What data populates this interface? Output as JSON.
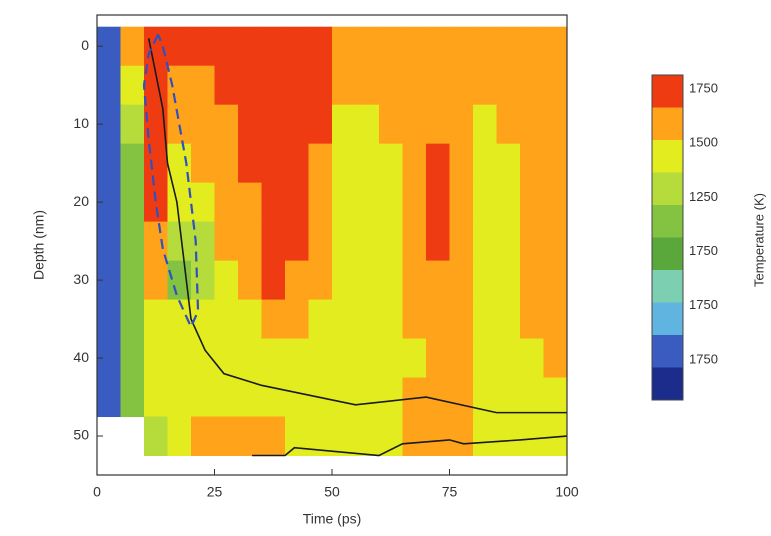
{
  "chart_data": {
    "type": "heatmap",
    "xlabel": "Time (ps)",
    "ylabel": "Depth (nm)",
    "colorbar_title": "Temperature (K)",
    "xlim": [
      0,
      100
    ],
    "ylim": [
      -4,
      55
    ],
    "y_inverted": true,
    "xticks": [
      0,
      25,
      50,
      75,
      100
    ],
    "yticks": [
      0,
      10,
      20,
      30,
      40,
      50
    ],
    "cell_width": 5,
    "cell_height": 5,
    "x": [
      2.5,
      7.5,
      12.5,
      17.5,
      22.5,
      27.5,
      32.5,
      37.5,
      42.5,
      47.5,
      52.5,
      57.5,
      62.5,
      67.5,
      72.5,
      77.5,
      82.5,
      87.5,
      92.5,
      97.5
    ],
    "y": [
      0,
      5,
      10,
      15,
      20,
      25,
      30,
      35,
      40,
      45,
      50
    ],
    "z": [
      [
        750,
        1500,
        1700,
        1700,
        1700,
        1700,
        1700,
        1700,
        1700,
        1700,
        1500,
        1500,
        1500,
        1500,
        1500,
        1500,
        1500,
        1500,
        1500,
        1500
      ],
      [
        750,
        1350,
        1700,
        1500,
        1500,
        1700,
        1700,
        1700,
        1700,
        1700,
        1500,
        1500,
        1500,
        1500,
        1500,
        1500,
        1500,
        1500,
        1500,
        1500
      ],
      [
        750,
        1250,
        1700,
        1500,
        1500,
        1500,
        1700,
        1700,
        1700,
        1700,
        1350,
        1350,
        1500,
        1500,
        1500,
        1500,
        1350,
        1500,
        1500,
        1500
      ],
      [
        750,
        1150,
        1700,
        1350,
        1500,
        1500,
        1700,
        1700,
        1700,
        1500,
        1350,
        1350,
        1350,
        1500,
        1700,
        1500,
        1350,
        1350,
        1500,
        1500
      ],
      [
        750,
        1150,
        1700,
        1300,
        1350,
        1500,
        1500,
        1700,
        1700,
        1500,
        1350,
        1350,
        1350,
        1500,
        1700,
        1500,
        1350,
        1350,
        1500,
        1500
      ],
      [
        750,
        1150,
        1500,
        1200,
        1250,
        1500,
        1500,
        1700,
        1700,
        1500,
        1350,
        1350,
        1350,
        1500,
        1700,
        1500,
        1350,
        1350,
        1500,
        1500
      ],
      [
        750,
        1150,
        1500,
        1150,
        1200,
        1400,
        1500,
        1700,
        1500,
        1500,
        1350,
        1350,
        1350,
        1500,
        1500,
        1500,
        1350,
        1350,
        1500,
        1500
      ],
      [
        750,
        1150,
        1350,
        1300,
        1350,
        1350,
        1350,
        1500,
        1500,
        1350,
        1350,
        1350,
        1350,
        1500,
        1500,
        1500,
        1350,
        1350,
        1500,
        1500
      ],
      [
        750,
        1150,
        1300,
        1350,
        1350,
        1350,
        1350,
        1350,
        1350,
        1350,
        1350,
        1350,
        1350,
        1400,
        1500,
        1500,
        1350,
        1350,
        1350,
        1500
      ],
      [
        750,
        1150,
        1300,
        1350,
        1400,
        1400,
        1350,
        1350,
        1350,
        1350,
        1350,
        1350,
        1350,
        1500,
        1500,
        1500,
        1350,
        1350,
        1350,
        1350
      ],
      [
        null,
        null,
        1250,
        1400,
        1500,
        1500,
        1500,
        1500,
        1350,
        1350,
        1350,
        1350,
        1400,
        1500,
        1500,
        1500,
        1350,
        1350,
        1350,
        1300
      ]
    ],
    "color_levels": [
      {
        "min": 1650,
        "color": "#ef3b12"
      },
      {
        "min": 1450,
        "color": "#ffa31a"
      },
      {
        "min": 1300,
        "color": "#e2ec1e"
      },
      {
        "min": 1200,
        "color": "#b6dc3c"
      },
      {
        "min": 1100,
        "color": "#84c341"
      },
      {
        "min": 1000,
        "color": "#5aa83c"
      },
      {
        "min": 900,
        "color": "#7ccfb0"
      },
      {
        "min": 800,
        "color": "#5fb4e0"
      },
      {
        "min": 700,
        "color": "#3a5cc0"
      },
      {
        "min": 0,
        "color": "#1c2c8c"
      }
    ],
    "colorbar_labels": [
      1750,
      1500,
      1250,
      1750,
      1750,
      1750
    ],
    "lines": [
      {
        "color": "#1a1a1a",
        "dash": false,
        "x": [
          11,
          12,
          14,
          15,
          17,
          18,
          19,
          20,
          23,
          27,
          35,
          55,
          70,
          85,
          100
        ],
        "y": [
          -1,
          2,
          8,
          15,
          20,
          25,
          30,
          35,
          39,
          42,
          43.5,
          46,
          45,
          47,
          47
        ]
      },
      {
        "color": "#1a1a1a",
        "dash": false,
        "x": [
          33,
          40,
          42,
          60,
          65,
          75,
          78,
          90,
          100
        ],
        "y": [
          52.5,
          52.5,
          51.5,
          52.5,
          51,
          50.5,
          51,
          50.5,
          50
        ]
      },
      {
        "color": "#3050c0",
        "dash": true,
        "x": [
          13,
          11,
          10,
          11,
          12.5,
          14,
          17,
          20,
          21.5,
          21,
          19,
          16,
          14,
          13
        ],
        "y": [
          -1.5,
          1,
          5,
          12,
          20,
          26,
          32,
          36,
          34,
          25,
          15,
          5,
          0,
          -1.5
        ]
      }
    ]
  }
}
